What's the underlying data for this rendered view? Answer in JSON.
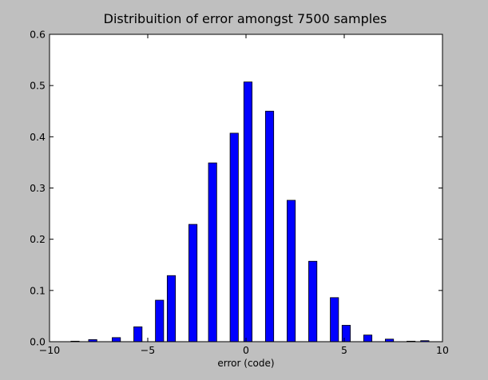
{
  "chart_data": {
    "type": "bar",
    "title": "Distribuition of error amongst 7500 samples",
    "xlabel": "error (code)",
    "ylabel": "",
    "xlim": [
      -10,
      10
    ],
    "ylim": [
      0,
      0.6
    ],
    "xticks": [
      -10,
      -5,
      0,
      5,
      10
    ],
    "xtick_labels": [
      "−10",
      "−5",
      "0",
      "5",
      "10"
    ],
    "yticks": [
      0.0,
      0.1,
      0.2,
      0.3,
      0.4,
      0.5,
      0.6
    ],
    "ytick_labels": [
      "0.0",
      "0.1",
      "0.2",
      "0.3",
      "0.4",
      "0.5",
      "0.6"
    ],
    "grid": false,
    "bar_color": "#0000ff",
    "bar_edge_color": "#000000",
    "plot_background": "#ffffff",
    "figure_background": "#bfbfbf",
    "bars": [
      {
        "x": -8.7,
        "value": 0.001
      },
      {
        "x": -7.8,
        "value": 0.004
      },
      {
        "x": -6.6,
        "value": 0.008
      },
      {
        "x": -5.5,
        "value": 0.029
      },
      {
        "x": -4.4,
        "value": 0.081
      },
      {
        "x": -3.8,
        "value": 0.129
      },
      {
        "x": -2.7,
        "value": 0.229
      },
      {
        "x": -1.7,
        "value": 0.349
      },
      {
        "x": -0.6,
        "value": 0.407
      },
      {
        "x": 0.1,
        "value": 0.507
      },
      {
        "x": 1.2,
        "value": 0.45
      },
      {
        "x": 2.3,
        "value": 0.276
      },
      {
        "x": 3.4,
        "value": 0.157
      },
      {
        "x": 4.5,
        "value": 0.086
      },
      {
        "x": 5.1,
        "value": 0.032
      },
      {
        "x": 6.2,
        "value": 0.013
      },
      {
        "x": 7.3,
        "value": 0.005
      },
      {
        "x": 8.4,
        "value": 0.001
      },
      {
        "x": 9.1,
        "value": 0.002
      }
    ],
    "bar_width": 0.42
  }
}
